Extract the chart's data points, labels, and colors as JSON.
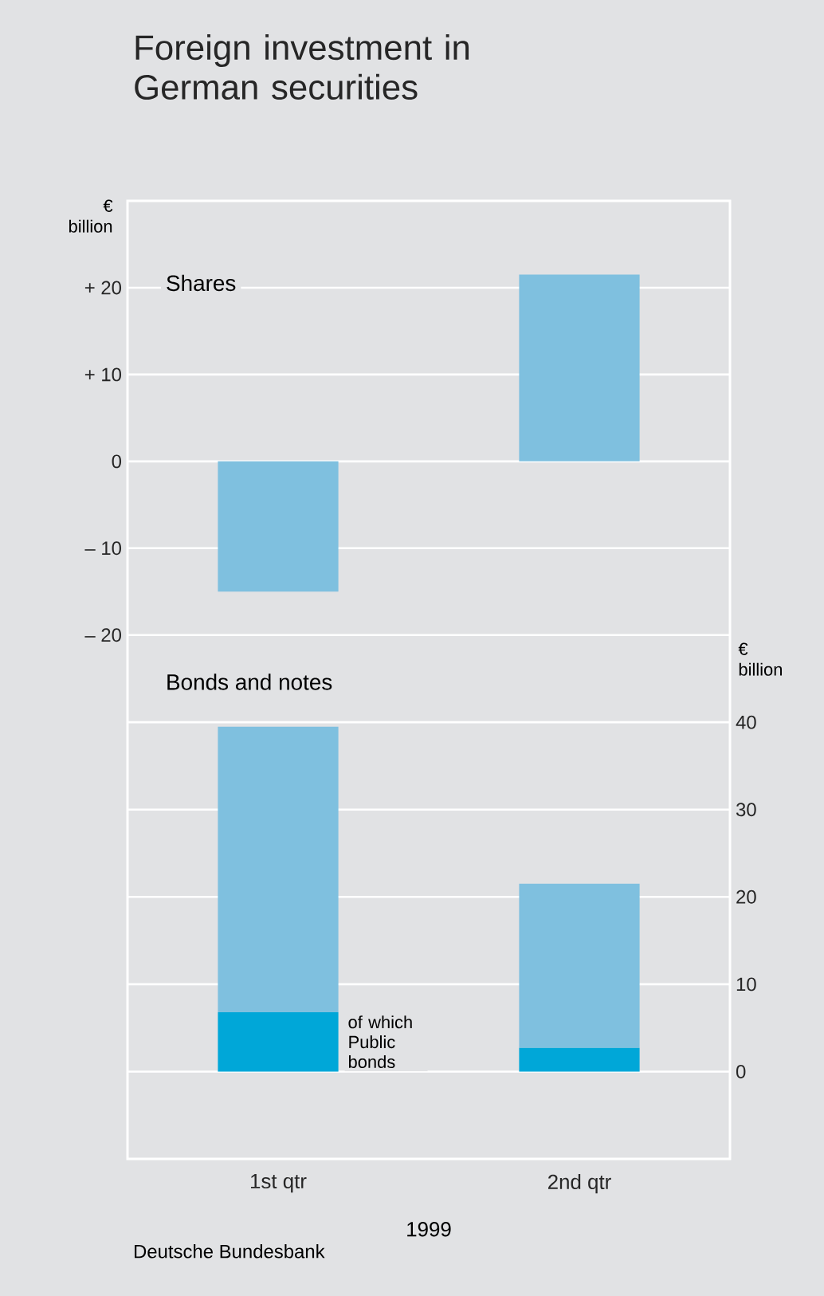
{
  "chart_data": [
    {
      "type": "bar",
      "title": "Foreign investment in German securities",
      "subtitle": "Shares",
      "ylabel": "€ billion",
      "categories": [
        null,
        null
      ],
      "values": [
        -15,
        21.5
      ],
      "color": "#7fc0df",
      "ylim": [
        -22.5,
        30
      ],
      "yticks": [
        {
          "value": 20,
          "label": "+ 20"
        },
        {
          "value": 10,
          "label": "+ 10"
        },
        0,
        {
          "value": -10,
          "label": "– 10"
        },
        {
          "value": -20,
          "label": "– 20"
        }
      ],
      "grid": "y",
      "tick_labels": "y"
    },
    {
      "type": "bar",
      "subtitle": "Bonds and notes",
      "ylabel": "€ billion",
      "xlabel": "1999",
      "categories": [
        "1st qtr",
        "2nd qtr"
      ],
      "stacked": true,
      "series": [
        {
          "name": "of which Public bonds",
          "color": "#00a7d8",
          "values": [
            6.8,
            2.7
          ]
        },
        {
          "color": "#7fc0df",
          "values": [
            32.7,
            18.8
          ]
        }
      ],
      "ylim": [
        -10,
        47.5
      ],
      "yticks": [
        0,
        10,
        20,
        30,
        40
      ],
      "grid": "y",
      "annotations": [
        "Deutsche Bundesbank"
      ]
    }
  ]
}
